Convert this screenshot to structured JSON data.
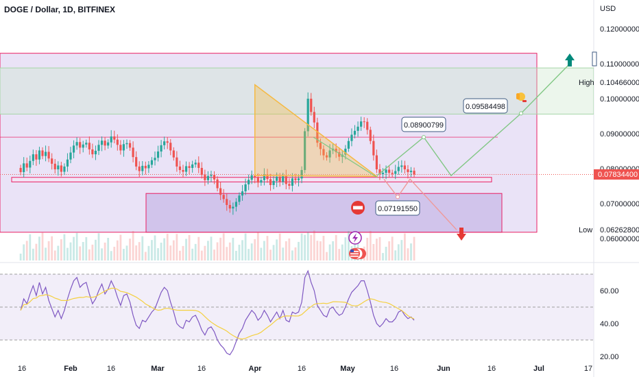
{
  "header": {
    "title": "DOGE / Dollar, 1D, BITFINEX"
  },
  "axis": {
    "currency": "USD"
  },
  "price_ticks": [
    "0.12000000",
    "0.11000000",
    "0.10000000",
    "0.09000000",
    "0.08000000",
    "0.07000000",
    "0.06000000"
  ],
  "rsi_ticks": [
    "60.00",
    "40.00",
    "20.00"
  ],
  "date_ticks": [
    "16",
    "Feb",
    "16",
    "Mar",
    "16",
    "Apr",
    "16",
    "May",
    "16",
    "Jun",
    "16",
    "Jul",
    "17"
  ],
  "labels": {
    "high_label": "High",
    "high_value": "0.10466000",
    "low_label": "Low",
    "low_value": "0.06262800",
    "last_value": "0.07834400",
    "callout_1": "0.08900799",
    "callout_2": "0.09584498",
    "callout_3": "0.07191550"
  },
  "colors": {
    "up": "#26a69a",
    "down": "#ef5350",
    "rsi": "#7e57c2",
    "rsi_ma": "#f4d03f",
    "zone": "#d9ccf0",
    "frame": "#e91e63",
    "triangle": "#f5b942"
  },
  "icons": {
    "stop": "no-entry-icon",
    "lightning": "lightning-icon",
    "flag": "us-flag-icon",
    "hand": "thumbs-hand-icon",
    "arrow_up": "arrow-up-icon",
    "arrow_down": "arrow-down-icon"
  },
  "chart_data": {
    "type": "candlestick",
    "title": "DOGE / Dollar, 1D, BITFINEX",
    "ylabel": "USD",
    "ylim": [
      0.057,
      0.124
    ],
    "rsi_ylim": [
      18,
      75
    ],
    "high": 0.10466,
    "low": 0.062628,
    "last": 0.078344,
    "candles_close": [
      0.079,
      0.0815,
      0.0803,
      0.0822,
      0.0841,
      0.0826,
      0.0852,
      0.0836,
      0.0848,
      0.0829,
      0.0814,
      0.0798,
      0.0809,
      0.0791,
      0.0806,
      0.0826,
      0.0846,
      0.0866,
      0.0876,
      0.086,
      0.0869,
      0.0874,
      0.0855,
      0.0841,
      0.0851,
      0.0868,
      0.088,
      0.0866,
      0.0875,
      0.0892,
      0.0883,
      0.0868,
      0.0852,
      0.087,
      0.0873,
      0.086,
      0.0833,
      0.0806,
      0.0793,
      0.0808,
      0.0801,
      0.0811,
      0.0824,
      0.0831,
      0.0849,
      0.0867,
      0.0878,
      0.0874,
      0.0852,
      0.0832,
      0.0806,
      0.0796,
      0.0791,
      0.0807,
      0.0802,
      0.0812,
      0.0817,
      0.0802,
      0.0782,
      0.0767,
      0.0779,
      0.0782,
      0.0769,
      0.0744,
      0.0725,
      0.0713,
      0.0696,
      0.0686,
      0.0691,
      0.0705,
      0.0723,
      0.0735,
      0.0755,
      0.0768,
      0.0781,
      0.0776,
      0.076,
      0.0767,
      0.0783,
      0.077,
      0.0753,
      0.0765,
      0.0777,
      0.0762,
      0.0779,
      0.0756,
      0.0751,
      0.0772,
      0.0767,
      0.0772,
      0.0796,
      0.0907,
      0.1,
      0.0962,
      0.0932,
      0.0874,
      0.0856,
      0.0838,
      0.0832,
      0.0852,
      0.0857,
      0.0847,
      0.0834,
      0.084,
      0.0857,
      0.0879,
      0.0897,
      0.0908,
      0.092,
      0.0935,
      0.0934,
      0.0911,
      0.0879,
      0.0838,
      0.0798,
      0.0784,
      0.0788,
      0.0797,
      0.0788,
      0.0785,
      0.0793,
      0.0805,
      0.0809,
      0.0798,
      0.079,
      0.0794,
      0.0783
    ],
    "zones": [
      {
        "from": "2023-01-01",
        "to": "2023-06-30",
        "low": 0.0618,
        "high": 0.113
      },
      {
        "from": "2023-03-01",
        "to": "2023-06-10",
        "low": 0.0618,
        "high": 0.0729
      },
      {
        "from": "2023-01-01",
        "to": "2023-07-10",
        "low": 0.0956,
        "high": 0.1088
      }
    ],
    "levels": [
      0.1088,
      0.0956,
      0.089,
      0.0775,
      0.0762
    ],
    "triangle": [
      [
        0.104,
        "2023-04-01"
      ],
      [
        0.078,
        "2023-04-01"
      ],
      [
        0.0778,
        "2023-05-10"
      ]
    ],
    "projection_up": [
      0.078,
      0.089,
      0.078,
      0.0958,
      0.11
    ],
    "projection_down": [
      0.077,
      0.0719,
      0.077,
      0.0625
    ],
    "rsi": [
      48,
      55,
      52,
      58,
      63,
      57,
      65,
      58,
      62,
      54,
      49,
      44,
      48,
      43,
      48,
      55,
      61,
      66,
      68,
      62,
      64,
      65,
      58,
      52,
      55,
      60,
      64,
      58,
      61,
      66,
      62,
      56,
      51,
      57,
      58,
      53,
      45,
      39,
      37,
      42,
      41,
      44,
      47,
      49,
      54,
      59,
      62,
      60,
      53,
      47,
      40,
      38,
      37,
      42,
      41,
      44,
      45,
      41,
      36,
      33,
      37,
      38,
      35,
      30,
      27,
      25,
      22,
      21,
      24,
      29,
      34,
      37,
      42,
      45,
      48,
      46,
      42,
      44,
      48,
      45,
      41,
      44,
      47,
      43,
      48,
      42,
      41,
      47,
      46,
      47,
      53,
      68,
      72,
      65,
      60,
      51,
      48,
      45,
      44,
      49,
      50,
      47,
      45,
      46,
      50,
      55,
      59,
      61,
      63,
      66,
      66,
      60,
      53,
      45,
      40,
      38,
      40,
      43,
      41,
      41,
      43,
      47,
      48,
      45,
      43,
      44,
      42
    ]
  }
}
